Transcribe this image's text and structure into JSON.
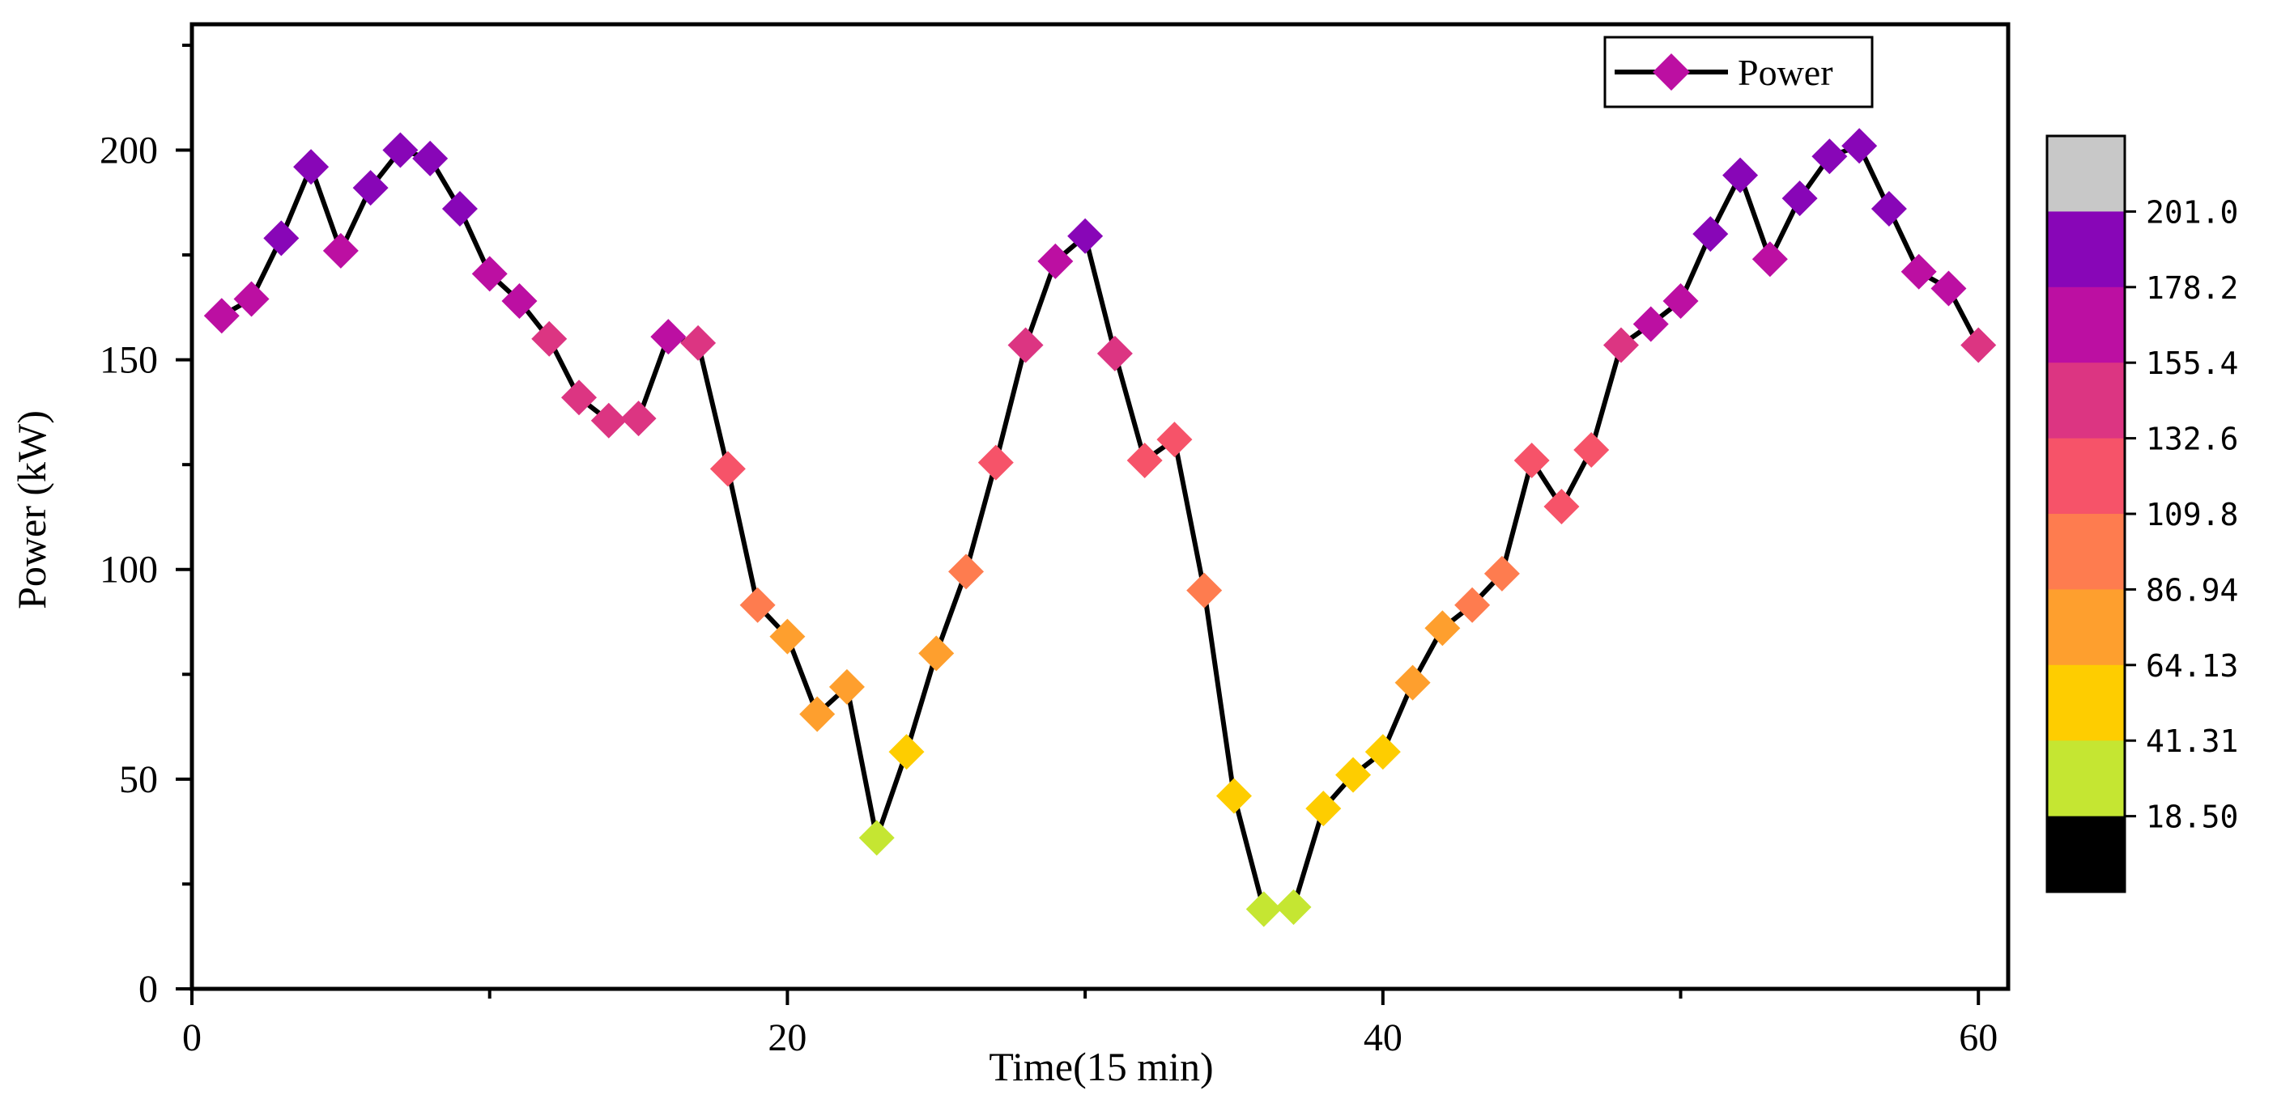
{
  "chart_data": {
    "type": "line",
    "title": "",
    "xlabel": "Time(15 min)",
    "ylabel": "Power (kW)",
    "xlim": [
      0,
      61
    ],
    "ylim": [
      0,
      230
    ],
    "grid": false,
    "x_ticks": [
      0,
      20,
      40,
      60
    ],
    "x_tick_labels": [
      "0",
      "20",
      "40",
      "60"
    ],
    "y_ticks": [
      0,
      50,
      100,
      150,
      200
    ],
    "y_tick_labels": [
      "0",
      "50",
      "100",
      "150",
      "200"
    ],
    "legend": {
      "position": "top-right",
      "entries": [
        "Power"
      ]
    },
    "series": [
      {
        "name": "Power",
        "line_color": "#000000",
        "marker": "diamond",
        "x": [
          1,
          2,
          3,
          4,
          5,
          6,
          7,
          8,
          9,
          10,
          11,
          12,
          13,
          14,
          15,
          16,
          17,
          18,
          19,
          20,
          21,
          22,
          23,
          24,
          25,
          26,
          27,
          28,
          29,
          30,
          31,
          32,
          33,
          34,
          35,
          36,
          37,
          38,
          39,
          40,
          41,
          42,
          43,
          44,
          45,
          46,
          47,
          48,
          49,
          50,
          51,
          52,
          53,
          54,
          55,
          56,
          57,
          58,
          59,
          60
        ],
        "values": [
          160.5,
          164.5,
          179,
          196,
          176,
          191,
          200,
          198,
          186,
          170.5,
          164,
          155,
          141,
          135.5,
          136,
          155.5,
          154,
          124,
          91.5,
          84,
          65.5,
          72,
          36,
          56.5,
          80,
          99.5,
          125.5,
          153.5,
          173.5,
          179.5,
          151.5,
          126,
          131,
          95,
          46,
          19,
          19.5,
          43,
          51,
          56.5,
          73,
          86,
          91.5,
          99,
          126,
          115,
          128.5,
          153.5,
          158.5,
          164,
          180,
          194,
          174,
          188.5,
          198.5,
          201,
          186,
          171,
          167,
          153.5
        ]
      }
    ],
    "colorbar": {
      "tick_labels": [
        "18.50",
        "41.31",
        "64.13",
        "86.94",
        "109.8",
        "132.6",
        "155.4",
        "178.2",
        "201.0"
      ],
      "boundaries": [
        18.5,
        41.31,
        64.13,
        86.94,
        109.8,
        132.6,
        155.4,
        178.2,
        201.0
      ],
      "band_colors": [
        "#c5e632",
        "#fecd00",
        "#fe9f2e",
        "#fe7c4f",
        "#f65369",
        "#dc3582",
        "#bc0fa2",
        "#8806b7"
      ],
      "under_color": "#000000",
      "over_color": "#c8c8c8"
    }
  }
}
